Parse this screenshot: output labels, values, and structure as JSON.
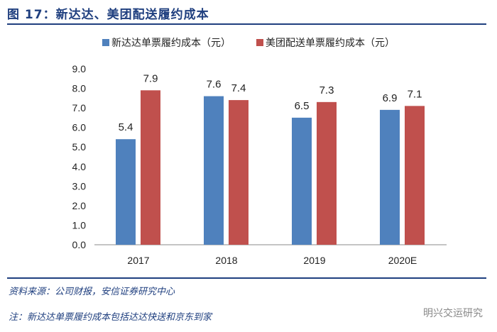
{
  "title": "图 17：新达达、美团配送履约成本",
  "source": "资料来源：公司财报，安信证券研究中心",
  "note": "注：新达达单票履约成本包括达达快送和京东到家",
  "watermark": "明兴交运研究",
  "chart_data": {
    "type": "bar",
    "categories": [
      "2017",
      "2018",
      "2019",
      "2020E"
    ],
    "series": [
      {
        "name": "新达达单票履约成本（元）",
        "values": [
          5.4,
          7.6,
          6.5,
          6.9
        ],
        "color": "#4F81BD"
      },
      {
        "name": "美团配送单票履约成本（元）",
        "values": [
          7.9,
          7.4,
          7.3,
          7.1
        ],
        "color": "#C0504D"
      }
    ],
    "ylim": [
      0,
      9
    ],
    "yticks": [
      "0.0",
      "1.0",
      "2.0",
      "3.0",
      "4.0",
      "5.0",
      "6.0",
      "7.0",
      "8.0",
      "9.0"
    ],
    "xlabel": "",
    "ylabel": "",
    "grid": false,
    "legend": "top"
  }
}
